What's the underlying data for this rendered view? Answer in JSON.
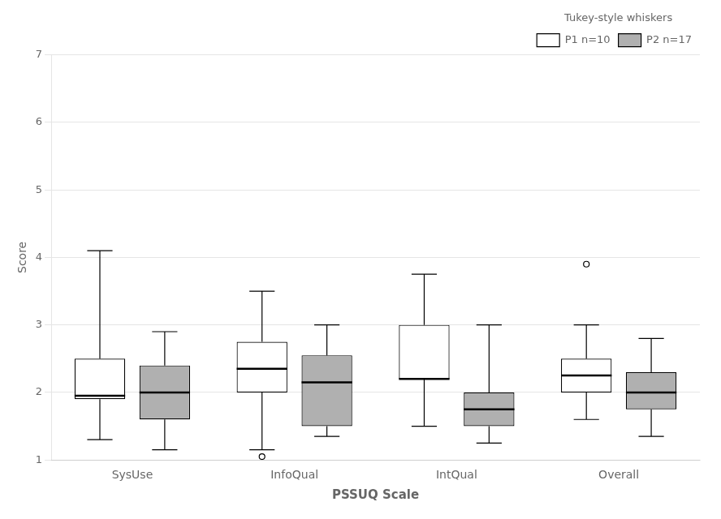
{
  "chart_data": {
    "type": "box",
    "xlabel": "PSSUQ Scale",
    "ylabel": "Score",
    "legend_title": "Tukey-style whiskers",
    "categories": [
      "SysUse",
      "InfoQual",
      "IntQual",
      "Overall"
    ],
    "series": [
      {
        "name": "P1 n=10",
        "color": "white",
        "values": [
          {
            "whislo": 1.3,
            "q1": 1.9,
            "med": 1.95,
            "q3": 2.5,
            "whishi": 4.1,
            "fliers": []
          },
          {
            "whislo": 1.15,
            "q1": 2.0,
            "med": 2.35,
            "q3": 2.75,
            "whishi": 3.5,
            "fliers": [
              1.05
            ]
          },
          {
            "whislo": 1.5,
            "q1": 2.2,
            "med": 2.2,
            "q3": 3.0,
            "whishi": 3.75,
            "fliers": []
          },
          {
            "whislo": 1.6,
            "q1": 2.0,
            "med": 2.25,
            "q3": 2.5,
            "whishi": 3.0,
            "fliers": [
              3.9
            ]
          }
        ]
      },
      {
        "name": "P2 n=17",
        "color": "#b0b0b0",
        "values": [
          {
            "whislo": 1.15,
            "q1": 1.6,
            "med": 2.0,
            "q3": 2.4,
            "whishi": 2.9,
            "fliers": []
          },
          {
            "whislo": 1.35,
            "q1": 1.5,
            "med": 2.15,
            "q3": 2.55,
            "whishi": 3.0,
            "fliers": []
          },
          {
            "whislo": 1.25,
            "q1": 1.5,
            "med": 1.75,
            "q3": 2.0,
            "whishi": 3.0,
            "fliers": []
          },
          {
            "whislo": 1.35,
            "q1": 1.75,
            "med": 2.0,
            "q3": 2.3,
            "whishi": 2.8,
            "fliers": []
          }
        ]
      }
    ],
    "ylim": [
      1.0,
      7.0
    ],
    "yticks": [
      1,
      2,
      3,
      4,
      5,
      6,
      7
    ],
    "grid": "y",
    "legend": "upper right"
  }
}
